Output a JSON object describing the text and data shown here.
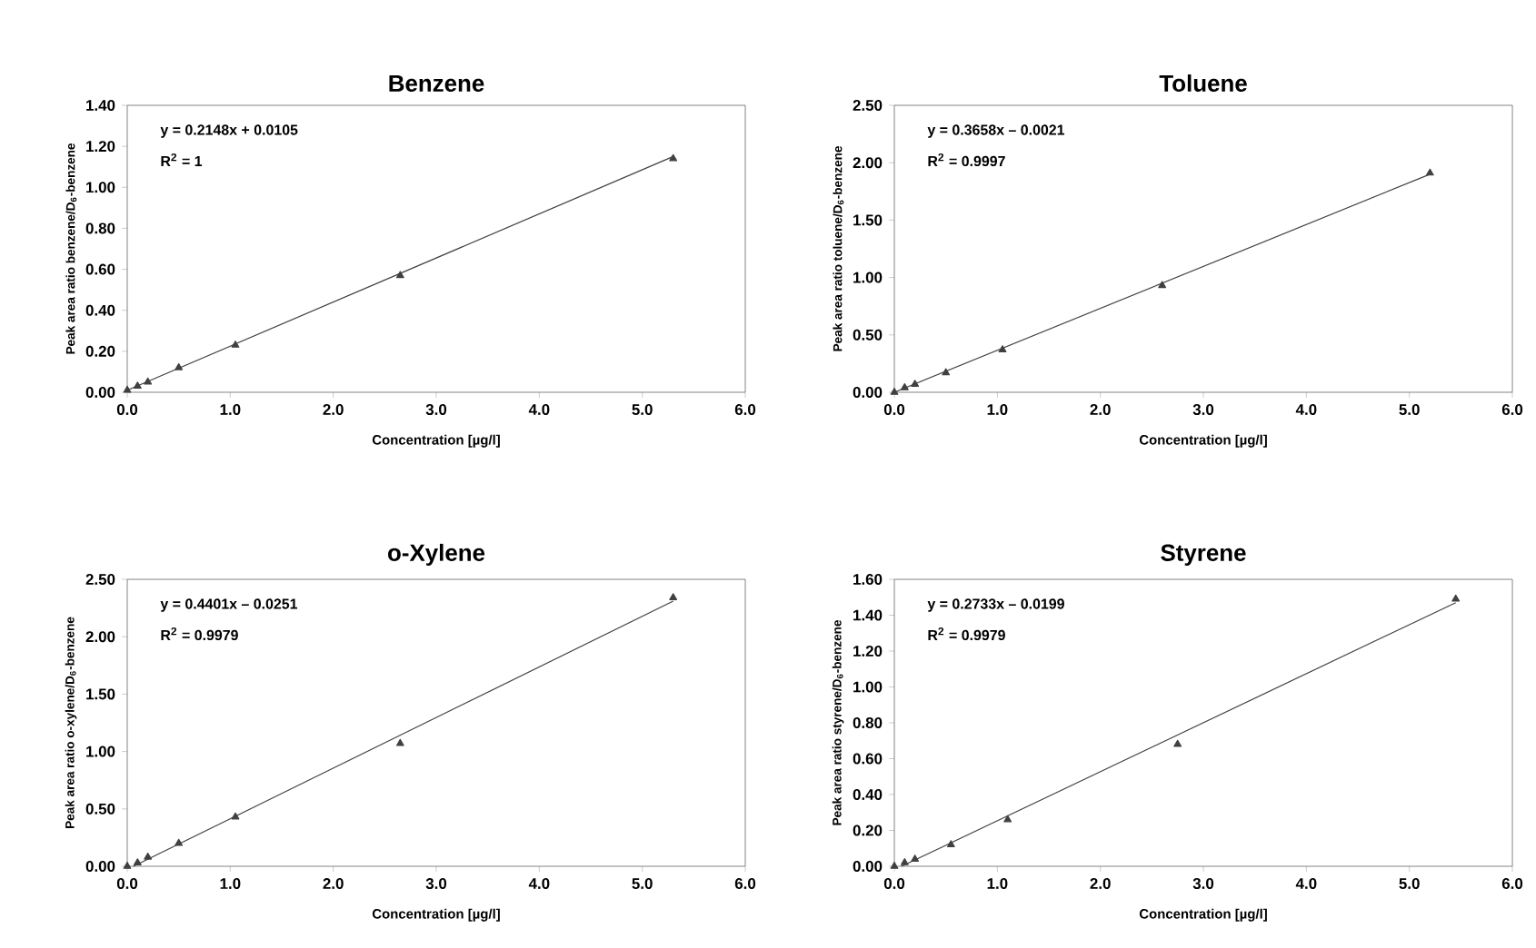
{
  "chart_data": [
    {
      "type": "scatter",
      "title": "Benzene",
      "xlabel": "Concentration [µg/l]",
      "ylabel": "Peak area ratio benzene/D$_{6}$-benzene",
      "xlim": [
        0,
        6
      ],
      "ylim": [
        0,
        1.4
      ],
      "xticks": [
        {
          "value": 0,
          "label": "0.0"
        },
        {
          "value": 1,
          "label": "1.0"
        },
        {
          "value": 2,
          "label": "2.0"
        },
        {
          "value": 3,
          "label": "3.0"
        },
        {
          "value": 4,
          "label": "4.0"
        },
        {
          "value": 5,
          "label": "5.0"
        },
        {
          "value": 6,
          "label": "6.0"
        }
      ],
      "yticks": [
        {
          "value": 0,
          "label": "0.00"
        },
        {
          "value": 0.2,
          "label": "0.20"
        },
        {
          "value": 0.4,
          "label": "0.40"
        },
        {
          "value": 0.6,
          "label": "0.60"
        },
        {
          "value": 0.8,
          "label": "0.80"
        },
        {
          "value": 1.0,
          "label": "1.00"
        },
        {
          "value": 1.2,
          "label": "1.20"
        },
        {
          "value": 1.4,
          "label": "1.40"
        }
      ],
      "annotations": [
        "y = 0.2148x + 0.0105",
        "R$^{2}$ = 1"
      ],
      "series": [
        {
          "marker": "triangle",
          "color": "#404040",
          "x": [
            0,
            0.1,
            0.2,
            0.5,
            1.05,
            2.65,
            5.3
          ],
          "values": [
            0.01,
            0.03,
            0.05,
            0.12,
            0.23,
            0.57,
            1.14
          ]
        },
        {
          "type": "line",
          "marker": "none",
          "line_style": "solid",
          "color": "#404040",
          "x": [
            0,
            5.3
          ],
          "values": [
            0.01,
            1.15
          ]
        }
      ]
    },
    {
      "type": "scatter",
      "title": "Toluene",
      "xlabel": "Concentration [µg/l]",
      "ylabel": "Peak area ratio toluene/D$_{6}$-benzene",
      "xlim": [
        0,
        6
      ],
      "ylim": [
        0,
        2.5
      ],
      "xticks": [
        {
          "value": 0,
          "label": "0.0"
        },
        {
          "value": 1,
          "label": "1.0"
        },
        {
          "value": 2,
          "label": "2.0"
        },
        {
          "value": 3,
          "label": "3.0"
        },
        {
          "value": 4,
          "label": "4.0"
        },
        {
          "value": 5,
          "label": "5.0"
        },
        {
          "value": 6,
          "label": "6.0"
        }
      ],
      "yticks": [
        {
          "value": 0,
          "label": "0.00"
        },
        {
          "value": 0.5,
          "label": "0.50"
        },
        {
          "value": 1.0,
          "label": "1.00"
        },
        {
          "value": 1.5,
          "label": "1.50"
        },
        {
          "value": 2.0,
          "label": "2.00"
        },
        {
          "value": 2.5,
          "label": "2.50"
        }
      ],
      "annotations": [
        "y = 0.3658x – 0.0021",
        "R$^{2}$ = 0.9997"
      ],
      "series": [
        {
          "marker": "triangle",
          "color": "#404040",
          "x": [
            0,
            0.1,
            0.2,
            0.5,
            1.05,
            2.6,
            5.2
          ],
          "values": [
            0,
            0.04,
            0.07,
            0.17,
            0.37,
            0.93,
            1.91
          ]
        },
        {
          "type": "line",
          "marker": "none",
          "line_style": "solid",
          "color": "#404040",
          "x": [
            0,
            5.2
          ],
          "values": [
            0,
            1.9
          ]
        }
      ]
    },
    {
      "type": "scatter",
      "title": "o-Xylene",
      "xlabel": "Concentration [µg/l]",
      "ylabel": "Peak area ratio o-xylene/D$_{6}$-benzene",
      "xlim": [
        0,
        6
      ],
      "ylim": [
        0,
        2.5
      ],
      "xticks": [
        {
          "value": 0,
          "label": "0.0"
        },
        {
          "value": 1,
          "label": "1.0"
        },
        {
          "value": 2,
          "label": "2.0"
        },
        {
          "value": 3,
          "label": "3.0"
        },
        {
          "value": 4,
          "label": "4.0"
        },
        {
          "value": 5,
          "label": "5.0"
        },
        {
          "value": 6,
          "label": "6.0"
        }
      ],
      "yticks": [
        {
          "value": 0,
          "label": "0.00"
        },
        {
          "value": 0.5,
          "label": "0.50"
        },
        {
          "value": 1.0,
          "label": "1.00"
        },
        {
          "value": 1.5,
          "label": "1.50"
        },
        {
          "value": 2.0,
          "label": "2.00"
        },
        {
          "value": 2.5,
          "label": "2.50"
        }
      ],
      "annotations": [
        "y = 0.4401x – 0.0251",
        "R$^{2}$ = 0.9979"
      ],
      "series": [
        {
          "marker": "triangle",
          "color": "#404040",
          "x": [
            0,
            0.1,
            0.2,
            0.5,
            1.05,
            2.65,
            5.3
          ],
          "values": [
            0,
            0.03,
            0.08,
            0.2,
            0.43,
            1.07,
            2.34
          ]
        },
        {
          "type": "line",
          "marker": "none",
          "line_style": "solid",
          "color": "#404040",
          "x": [
            0.06,
            5.3
          ],
          "values": [
            0,
            2.31
          ]
        }
      ]
    },
    {
      "type": "scatter",
      "title": "Styrene",
      "xlabel": "Concentration [µg/l]",
      "ylabel": "Peak area ratio styrene/D$_{6}$-benzene",
      "xlim": [
        0,
        6
      ],
      "ylim": [
        0,
        1.6
      ],
      "xticks": [
        {
          "value": 0,
          "label": "0.0"
        },
        {
          "value": 1,
          "label": "1.0"
        },
        {
          "value": 2,
          "label": "2.0"
        },
        {
          "value": 3,
          "label": "3.0"
        },
        {
          "value": 4,
          "label": "4.0"
        },
        {
          "value": 5,
          "label": "5.0"
        },
        {
          "value": 6,
          "label": "6.0"
        }
      ],
      "yticks": [
        {
          "value": 0,
          "label": "0.00"
        },
        {
          "value": 0.2,
          "label": "0.20"
        },
        {
          "value": 0.4,
          "label": "0.40"
        },
        {
          "value": 0.6,
          "label": "0.60"
        },
        {
          "value": 0.8,
          "label": "0.80"
        },
        {
          "value": 1.0,
          "label": "1.00"
        },
        {
          "value": 1.2,
          "label": "1.20"
        },
        {
          "value": 1.4,
          "label": "1.40"
        },
        {
          "value": 1.6,
          "label": "1.60"
        }
      ],
      "annotations": [
        "y = 0.2733x – 0.0199",
        "R$^{2}$ = 0.9979"
      ],
      "series": [
        {
          "marker": "triangle",
          "color": "#404040",
          "x": [
            0,
            0.1,
            0.2,
            0.55,
            1.1,
            2.75,
            5.45
          ],
          "values": [
            0,
            0.02,
            0.04,
            0.12,
            0.26,
            0.68,
            1.49
          ]
        },
        {
          "type": "line",
          "marker": "none",
          "line_style": "solid",
          "color": "#404040",
          "x": [
            0.07,
            5.45
          ],
          "values": [
            0,
            1.47
          ]
        }
      ]
    }
  ]
}
